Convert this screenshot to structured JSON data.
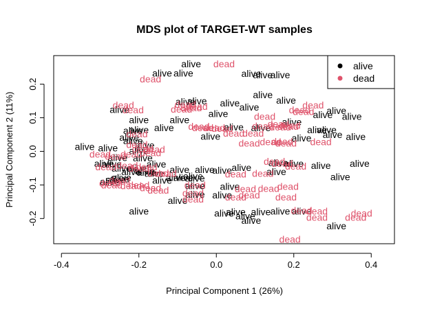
{
  "chart_data": {
    "type": "scatter",
    "title": "MDS plot of TARGET-WT samples",
    "xlabel": "Principal Component 1 (26%)",
    "ylabel": "Principal Component 2 (11%)",
    "xlim": [
      -0.42,
      0.46
    ],
    "ylim": [
      -0.275,
      0.285
    ],
    "xticks": [
      -0.4,
      -0.2,
      0.0,
      0.2,
      0.4
    ],
    "xtick_labels": [
      "-0.4",
      "-0.2",
      "0.0",
      "0.2",
      "0.4"
    ],
    "yticks": [
      -0.2,
      -0.1,
      0.0,
      0.1,
      0.2
    ],
    "ytick_labels": [
      "-0.2",
      "-0.1",
      "0.0",
      "0.1",
      "0.2"
    ],
    "grid": false,
    "legend": {
      "position": "top-right",
      "entries": [
        {
          "label": "alive",
          "color": "#000000"
        },
        {
          "label": "dead",
          "color": "#DF536B"
        }
      ]
    },
    "series": [
      {
        "name": "alive",
        "color": "#000000",
        "points": [
          [
            -0.065,
            0.26
          ],
          [
            -0.14,
            0.233
          ],
          [
            -0.085,
            0.233
          ],
          [
            0.09,
            0.232
          ],
          [
            0.12,
            0.228
          ],
          [
            0.165,
            0.228
          ],
          [
            0.12,
            0.168
          ],
          [
            0.18,
            0.152
          ],
          [
            -0.05,
            0.15
          ],
          [
            -0.08,
            0.148
          ],
          [
            0.035,
            0.144
          ],
          [
            0.085,
            0.132
          ],
          [
            -0.25,
            0.125
          ],
          [
            0.31,
            0.122
          ],
          [
            0.275,
            0.109
          ],
          [
            0.35,
            0.104
          ],
          [
            -0.2,
            0.094
          ],
          [
            -0.095,
            0.094
          ],
          [
            0.005,
            0.112
          ],
          [
            0.195,
            0.088
          ],
          [
            -0.135,
            0.07
          ],
          [
            -0.2,
            0.064
          ],
          [
            0.26,
            0.064
          ],
          [
            0.285,
            0.064
          ],
          [
            -0.215,
            0.062
          ],
          [
            0.045,
            0.072
          ],
          [
            0.115,
            0.07
          ],
          [
            -0.225,
            0.042
          ],
          [
            -0.015,
            0.045
          ],
          [
            0.3,
            0.05
          ],
          [
            -0.215,
            0.032
          ],
          [
            0.22,
            0.04
          ],
          [
            0.36,
            0.044
          ],
          [
            -0.34,
            0.014
          ],
          [
            -0.28,
            0.01
          ],
          [
            -0.2,
            0.002
          ],
          [
            -0.185,
            0.018
          ],
          [
            -0.255,
            -0.018
          ],
          [
            -0.29,
            -0.036
          ],
          [
            -0.27,
            -0.038
          ],
          [
            -0.19,
            -0.02
          ],
          [
            -0.155,
            -0.038
          ],
          [
            -0.245,
            -0.05
          ],
          [
            -0.205,
            -0.05
          ],
          [
            -0.185,
            -0.058
          ],
          [
            -0.18,
            -0.062
          ],
          [
            -0.16,
            -0.066
          ],
          [
            -0.22,
            -0.06
          ],
          [
            -0.095,
            -0.054
          ],
          [
            -0.03,
            -0.054
          ],
          [
            0.015,
            -0.056
          ],
          [
            0.065,
            -0.048
          ],
          [
            0.16,
            -0.034
          ],
          [
            0.2,
            -0.036
          ],
          [
            0.27,
            -0.042
          ],
          [
            0.37,
            -0.036
          ],
          [
            -0.25,
            -0.082
          ],
          [
            -0.26,
            -0.084
          ],
          [
            -0.275,
            -0.09
          ],
          [
            -0.245,
            -0.078
          ],
          [
            -0.14,
            -0.086
          ],
          [
            -0.105,
            -0.078
          ],
          [
            -0.085,
            -0.078
          ],
          [
            -0.055,
            -0.08
          ],
          [
            -0.06,
            -0.074
          ],
          [
            0.155,
            -0.06
          ],
          [
            0.32,
            -0.076
          ],
          [
            -0.055,
            -0.102
          ],
          [
            0.035,
            -0.104
          ],
          [
            -0.1,
            -0.146
          ],
          [
            -0.055,
            -0.128
          ],
          [
            0.015,
            -0.13
          ],
          [
            -0.2,
            -0.178
          ],
          [
            0.02,
            -0.184
          ],
          [
            0.05,
            -0.18
          ],
          [
            0.075,
            -0.192
          ],
          [
            0.115,
            -0.18
          ],
          [
            0.165,
            -0.178
          ],
          [
            0.22,
            -0.178
          ],
          [
            0.09,
            -0.206
          ],
          [
            0.31,
            -0.222
          ]
        ]
      },
      {
        "name": "dead",
        "color": "#DF536B",
        "points": [
          [
            0.02,
            0.26
          ],
          [
            -0.17,
            0.216
          ],
          [
            -0.24,
            0.138
          ],
          [
            -0.08,
            0.14
          ],
          [
            -0.05,
            0.134
          ],
          [
            -0.09,
            0.126
          ],
          [
            -0.215,
            0.124
          ],
          [
            -0.065,
            0.13
          ],
          [
            0.215,
            0.124
          ],
          [
            0.25,
            0.138
          ],
          [
            0.225,
            0.118
          ],
          [
            0.125,
            0.104
          ],
          [
            0.16,
            0.082
          ],
          [
            0.185,
            0.074
          ],
          [
            -0.045,
            0.075
          ],
          [
            -0.035,
            0.07
          ],
          [
            -0.005,
            0.07
          ],
          [
            0.015,
            0.068
          ],
          [
            0.12,
            0.076
          ],
          [
            0.165,
            0.072
          ],
          [
            0.19,
            0.078
          ],
          [
            -0.205,
            0.052
          ],
          [
            0.045,
            0.054
          ],
          [
            0.095,
            0.054
          ],
          [
            0.085,
            0.024
          ],
          [
            0.14,
            0.028
          ],
          [
            0.18,
            0.024
          ],
          [
            0.27,
            0.028
          ],
          [
            0.17,
            0.03
          ],
          [
            -0.205,
            0.02
          ],
          [
            -0.19,
            0.008
          ],
          [
            -0.16,
            0.006
          ],
          [
            -0.3,
            -0.008
          ],
          [
            -0.26,
            -0.014
          ],
          [
            -0.22,
            -0.008
          ],
          [
            -0.17,
            -0.004
          ],
          [
            -0.285,
            -0.046
          ],
          [
            -0.23,
            -0.042
          ],
          [
            -0.2,
            -0.05
          ],
          [
            -0.18,
            -0.046
          ],
          [
            -0.15,
            -0.064
          ],
          [
            -0.13,
            -0.066
          ],
          [
            0.15,
            -0.03
          ],
          [
            0.17,
            -0.036
          ],
          [
            0.205,
            -0.044
          ],
          [
            0.05,
            -0.068
          ],
          [
            0.12,
            -0.066
          ],
          [
            -0.275,
            -0.094
          ],
          [
            -0.27,
            -0.1
          ],
          [
            -0.25,
            -0.086
          ],
          [
            -0.22,
            -0.102
          ],
          [
            -0.2,
            -0.1
          ],
          [
            -0.17,
            -0.108
          ],
          [
            -0.15,
            -0.116
          ],
          [
            -0.055,
            -0.1
          ],
          [
            -0.06,
            -0.124
          ],
          [
            0.075,
            -0.112
          ],
          [
            0.135,
            -0.11
          ],
          [
            0.185,
            -0.104
          ],
          [
            0.05,
            -0.136
          ],
          [
            0.085,
            -0.13
          ],
          [
            0.18,
            -0.136
          ],
          [
            -0.06,
            -0.142
          ],
          [
            0.22,
            -0.176
          ],
          [
            0.26,
            -0.178
          ],
          [
            0.26,
            -0.196
          ],
          [
            0.375,
            -0.184
          ],
          [
            0.36,
            -0.196
          ],
          [
            0.19,
            -0.262
          ]
        ]
      }
    ]
  }
}
